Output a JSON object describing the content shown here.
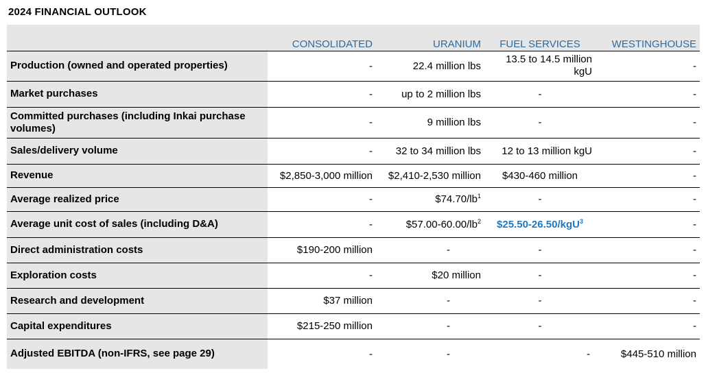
{
  "title": "2024 FINANCIAL OUTLOOK",
  "columns": [
    "",
    "CONSOLIDATED",
    "URANIUM",
    "FUEL SERVICES",
    "WESTINGHOUSE"
  ],
  "rows": [
    {
      "label": "Production (owned and operated properties)",
      "consolidated": "-",
      "uranium": "22.4 million lbs",
      "fuel_services": "13.5 to 14.5 million kgU",
      "westinghouse": "-"
    },
    {
      "label": "Market purchases",
      "consolidated": "-",
      "uranium": "up to 2 million lbs",
      "fuel_services": "-",
      "westinghouse": "-"
    },
    {
      "label": "Committed purchases (including Inkai purchase volumes)",
      "consolidated": "-",
      "uranium": "9 million lbs",
      "fuel_services": "-",
      "westinghouse": "-"
    },
    {
      "label": "Sales/delivery volume",
      "consolidated": "-",
      "uranium": "32 to 34 million lbs",
      "fuel_services": "12 to 13 million kgU",
      "westinghouse": "-"
    },
    {
      "label": "Revenue",
      "consolidated": "$2,850-3,000 million",
      "uranium": "$2,410-2,530 million",
      "fuel_services": "$430-460 million",
      "westinghouse": "-"
    },
    {
      "label": "Average realized price",
      "consolidated": "-",
      "uranium": "$74.70/lb",
      "uranium_sup": "1",
      "fuel_services": "-",
      "westinghouse": "-"
    },
    {
      "label": "Average unit cost of sales (including D&A)",
      "consolidated": "-",
      "uranium": "$57.00-60.00/lb",
      "uranium_sup": "2",
      "fuel_services": "$25.50-26.50/kgU",
      "fuel_services_sup": "3",
      "westinghouse": "-"
    },
    {
      "label": "Direct administration costs",
      "consolidated": "$190-200 million",
      "uranium": "-",
      "fuel_services": "-",
      "westinghouse": "-"
    },
    {
      "label": "Exploration costs",
      "consolidated": "-",
      "uranium": "$20 million",
      "fuel_services": "-",
      "westinghouse": "-"
    },
    {
      "label": "Research and development",
      "consolidated": "$37 million",
      "uranium": "-",
      "fuel_services": "-",
      "westinghouse": "-"
    },
    {
      "label": "Capital expenditures",
      "consolidated": "$215-250 million",
      "uranium": "-",
      "fuel_services": "-",
      "westinghouse": "-"
    },
    {
      "label": "Adjusted EBITDA (non-IFRS, see page 29)",
      "consolidated": "-",
      "uranium": "-",
      "fuel_services": "-",
      "westinghouse": "$445-510 million"
    }
  ],
  "colors": {
    "header_text": "#2d6aa0",
    "label_bg": "#e6e6e6",
    "highlight": "#1f77c4"
  }
}
